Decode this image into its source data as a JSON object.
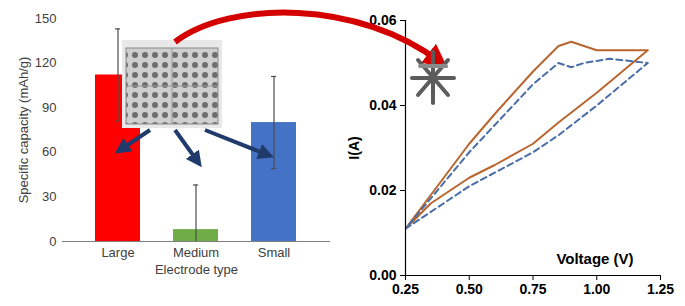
{
  "chart_data": [
    {
      "type": "bar",
      "categories": [
        "Large",
        "Medium",
        "Small"
      ],
      "values": [
        112,
        8,
        80
      ],
      "errors": [
        31,
        30,
        31
      ],
      "colors": [
        "#ff0000",
        "#70ad47",
        "#4472c4"
      ],
      "xlabel": "Electrode type",
      "ylabel": "Specific capacity (mAh/g)",
      "ylim": [
        0,
        150
      ],
      "yticks": [
        0,
        30,
        60,
        90,
        120,
        150
      ],
      "grid": false
    },
    {
      "type": "line",
      "xlabel": "Voltage (V)",
      "ylabel": "I(A)",
      "xlim": [
        0.25,
        1.25
      ],
      "xticks": [
        0.25,
        {
          "value": 0.5,
          "label": "0.50"
        },
        0.75,
        {
          "value": 1,
          "label": "1.00"
        },
        1.25
      ],
      "ylim": [
        0,
        0.06
      ],
      "yticks": [
        {
          "value": 0,
          "label": "0.00"
        },
        0.02,
        0.04,
        0.06
      ],
      "grid": false,
      "series": [
        {
          "color": "#b8652e",
          "line_style": "solid",
          "x": [
            0.25,
            0.35,
            0.5,
            0.6,
            0.75,
            0.85,
            1.0,
            1.1,
            1.2,
            1.1,
            1.0,
            0.95,
            0.9,
            0.85,
            0.75,
            0.6,
            0.5,
            0.4,
            0.3,
            0.25
          ],
          "values": [
            0.011,
            0.017,
            0.023,
            0.026,
            0.031,
            0.036,
            0.043,
            0.048,
            0.053,
            0.053,
            0.053,
            0.054,
            0.055,
            0.054,
            0.048,
            0.038,
            0.031,
            0.023,
            0.015,
            0.011
          ]
        },
        {
          "color": "#4a6da7",
          "line_style": "dashed",
          "x": [
            0.25,
            0.5,
            0.75,
            0.85,
            1.0,
            1.1,
            1.2,
            1.05,
            0.95,
            0.9,
            0.85,
            0.75,
            0.5,
            0.25
          ],
          "values": [
            0.011,
            0.021,
            0.029,
            0.033,
            0.04,
            0.045,
            0.05,
            0.051,
            0.05,
            0.049,
            0.05,
            0.045,
            0.029,
            0.011
          ]
        }
      ]
    }
  ]
}
